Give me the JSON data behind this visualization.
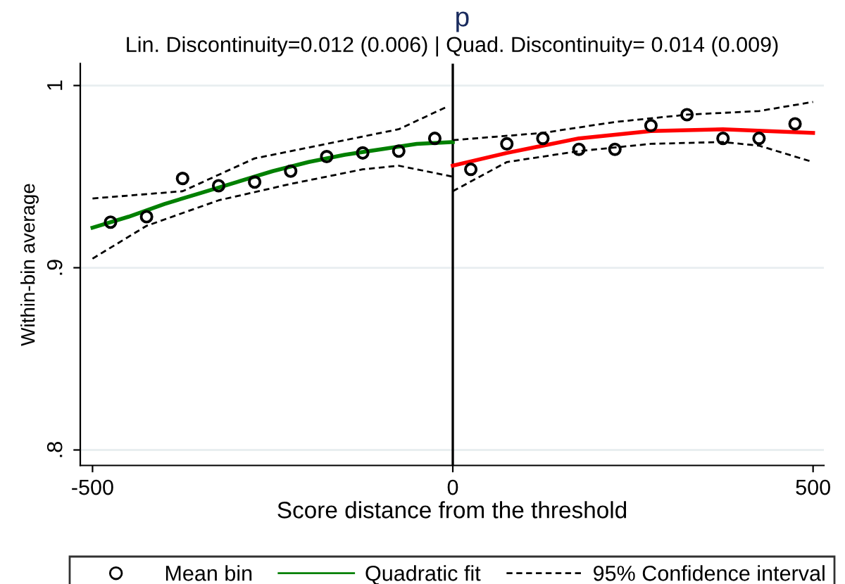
{
  "chart_data": {
    "type": "scatter",
    "title": "p",
    "subtitle": "Lin. Discontinuity=0.012 (0.006) | Quad. Discontinuity= 0.014 (0.009)",
    "xlabel": "Score distance from the threshold",
    "ylabel": "Within-bin average",
    "xlim": [
      -517,
      515
    ],
    "xticks": [
      -500,
      0,
      500
    ],
    "ylim": [
      0.7915,
      1.012
    ],
    "yticks": [
      {
        "value": 0.8,
        "label": ".8"
      },
      {
        "value": 0.9,
        "label": ".9"
      },
      {
        "value": 1,
        "label": "1"
      }
    ],
    "grid": "y",
    "legend": "bottom",
    "ref_lines": [
      {
        "axis": "x",
        "value": 0,
        "color": "#000000"
      }
    ],
    "series": [
      {
        "name": "Mean bin",
        "marker": "circle",
        "color": "#000000",
        "x": [
          -475,
          -425,
          -375,
          -325,
          -275,
          -225,
          -175,
          -125,
          -75,
          -25,
          25,
          75,
          125,
          175,
          225,
          275,
          325,
          375,
          425,
          475
        ],
        "values": [
          0.925,
          0.928,
          0.949,
          0.945,
          0.947,
          0.953,
          0.961,
          0.963,
          0.964,
          0.971,
          0.954,
          0.968,
          0.971,
          0.965,
          0.965,
          0.978,
          0.984,
          0.971,
          0.971,
          0.979
        ]
      },
      {
        "name": "Quadratic fit",
        "type": "line",
        "line_style": "solid",
        "color": "#008000",
        "x": [
          -500,
          -450,
          -400,
          -350,
          -300,
          -250,
          -200,
          -150,
          -100,
          -50,
          0
        ],
        "values": [
          0.922,
          0.928,
          0.935,
          0.941,
          0.947,
          0.953,
          0.958,
          0.962,
          0.965,
          0.968,
          0.969
        ]
      },
      {
        "type": "line",
        "line_style": "solid",
        "color": "#ff0000",
        "x": [
          0,
          75,
          175,
          275,
          375,
          500
        ],
        "values": [
          0.956,
          0.963,
          0.971,
          0.975,
          0.976,
          0.974
        ]
      },
      {
        "name": "95% Confidence interval",
        "type": "line",
        "line_style": "dashed",
        "color": "#000000",
        "x": [
          -500,
          -375,
          -275,
          -175,
          -75,
          -10
        ],
        "values": [
          0.938,
          0.942,
          0.96,
          0.968,
          0.976,
          0.988
        ]
      },
      {
        "type": "line",
        "line_style": "dashed",
        "color": "#000000",
        "x": [
          -500,
          -425,
          -325,
          -225,
          -125,
          -75,
          0
        ],
        "values": [
          0.905,
          0.923,
          0.937,
          0.946,
          0.954,
          0.956,
          0.95
        ]
      },
      {
        "type": "line",
        "line_style": "dashed",
        "color": "#000000",
        "x": [
          0,
          125,
          225,
          325,
          425,
          500
        ],
        "values": [
          0.97,
          0.974,
          0.98,
          0.984,
          0.986,
          0.991
        ]
      },
      {
        "type": "line",
        "line_style": "dashed",
        "color": "#000000",
        "x": [
          0,
          75,
          175,
          275,
          375,
          425,
          500
        ],
        "values": [
          0.942,
          0.958,
          0.964,
          0.968,
          0.969,
          0.967,
          0.958
        ]
      }
    ]
  }
}
